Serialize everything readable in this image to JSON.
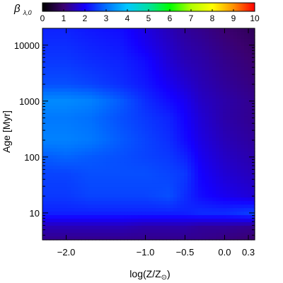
{
  "chart_data": {
    "type": "heatmap",
    "colorbar": {
      "label_main": "β",
      "label_sub": "λ,0",
      "range": [
        0,
        10
      ],
      "ticks": [
        "0",
        "1",
        "2",
        "3",
        "4",
        "5",
        "6",
        "7",
        "8",
        "9",
        "10"
      ],
      "colormap": [
        "#000000",
        "#3b0070",
        "#1400ff",
        "#0070ff",
        "#00c8ff",
        "#00e0a0",
        "#00ff00",
        "#b0ff00",
        "#ffff00",
        "#ff9000",
        "#ff0000"
      ]
    },
    "x_axis": {
      "label_main": "log(Z/Z",
      "label_sun": "⊙",
      "label_close": ")",
      "range": [
        -2.3,
        0.38
      ],
      "ticks": [
        {
          "value": -2.0,
          "label": "−2.0"
        },
        {
          "value": -1.0,
          "label": "−1.0"
        },
        {
          "value": -0.5,
          "label": "−0.5"
        },
        {
          "value": 0.0,
          "label": "0.0"
        },
        {
          "value": 0.3,
          "label": "0.3"
        }
      ]
    },
    "y_axis": {
      "label": "Age [Myr]",
      "scale": "log",
      "range": [
        3.3,
        20000
      ],
      "ticks": [
        {
          "value": 10,
          "label": "10"
        },
        {
          "value": 100,
          "label": "100"
        },
        {
          "value": 1000,
          "label": "1000"
        },
        {
          "value": 10000,
          "label": "10000"
        }
      ]
    },
    "grid": {
      "z": [
        -2.3,
        -2.0,
        -1.7,
        -1.3,
        -1.0,
        -0.7,
        -0.5,
        -0.3,
        0.0,
        0.38
      ],
      "log_age": [
        0.52,
        0.75,
        1.0,
        1.3,
        1.7,
        2.0,
        2.3,
        2.7,
        3.0,
        3.3,
        3.7,
        4.0,
        4.3
      ],
      "values": [
        [
          1.2,
          1.2,
          1.2,
          1.2,
          1.2,
          1.2,
          1.2,
          1.2,
          1.1,
          1.0
        ],
        [
          1.5,
          1.5,
          1.5,
          1.5,
          1.4,
          1.4,
          1.4,
          1.3,
          1.3,
          1.2
        ],
        [
          2.3,
          2.3,
          2.3,
          2.3,
          2.3,
          2.3,
          2.3,
          2.4,
          2.4,
          2.6
        ],
        [
          2.5,
          2.5,
          2.6,
          2.6,
          2.6,
          2.7,
          2.4,
          2.1,
          1.9,
          1.7
        ],
        [
          2.6,
          2.6,
          2.7,
          2.7,
          2.7,
          2.6,
          2.5,
          2.0,
          1.7,
          1.5
        ],
        [
          2.8,
          2.9,
          2.8,
          2.7,
          2.6,
          2.5,
          2.3,
          1.9,
          1.6,
          1.4
        ],
        [
          3.2,
          3.2,
          3.1,
          2.8,
          2.6,
          2.4,
          2.1,
          1.8,
          1.5,
          1.3
        ],
        [
          3.1,
          3.1,
          3.0,
          2.7,
          2.5,
          2.3,
          2.0,
          1.7,
          1.4,
          1.2
        ],
        [
          3.3,
          3.3,
          3.2,
          2.8,
          2.4,
          2.1,
          1.9,
          1.6,
          1.4,
          1.2
        ],
        [
          2.7,
          2.7,
          2.6,
          2.4,
          2.2,
          1.9,
          1.7,
          1.5,
          1.3,
          1.1
        ],
        [
          2.5,
          2.5,
          2.4,
          2.3,
          2.1,
          1.7,
          1.5,
          1.4,
          1.2,
          1.0
        ],
        [
          2.4,
          2.4,
          2.3,
          2.2,
          1.9,
          1.6,
          1.4,
          1.3,
          1.1,
          0.9
        ],
        [
          2.3,
          2.3,
          2.2,
          2.1,
          1.8,
          1.5,
          1.3,
          1.2,
          1.0,
          0.8
        ]
      ]
    }
  }
}
